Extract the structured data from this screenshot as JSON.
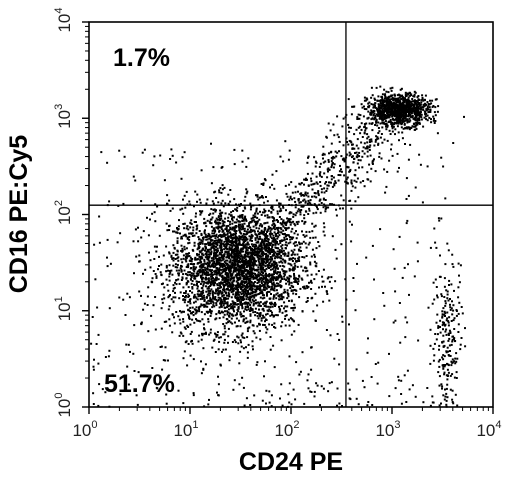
{
  "chart_data": {
    "type": "scatter",
    "xlabel": "CD24 PE",
    "ylabel": "CD16 PE:Cy5",
    "x_scale": "log",
    "y_scale": "log",
    "xlim": [
      1,
      10000
    ],
    "ylim": [
      1,
      10000
    ],
    "x_ticks": [
      {
        "base": "10",
        "exp": "0"
      },
      {
        "base": "10",
        "exp": "1"
      },
      {
        "base": "10",
        "exp": "2"
      },
      {
        "base": "10",
        "exp": "3"
      },
      {
        "base": "10",
        "exp": "4"
      }
    ],
    "y_ticks": [
      {
        "base": "10",
        "exp": "0"
      },
      {
        "base": "10",
        "exp": "1"
      },
      {
        "base": "10",
        "exp": "2"
      },
      {
        "base": "10",
        "exp": "3"
      },
      {
        "base": "10",
        "exp": "4"
      }
    ],
    "gates": {
      "x": 350,
      "y": 125
    },
    "quadrant_labels": {
      "upper_left": "1.7%",
      "lower_left": "51.7%"
    },
    "populations": [
      {
        "center_x": 28,
        "center_y": 28,
        "spread_x_decades": 0.33,
        "spread_y_decades": 0.32,
        "count": 3200
      },
      {
        "center_x": 1150,
        "center_y": 1250,
        "spread_x_decades": 0.15,
        "spread_y_decades": 0.08,
        "count": 1000
      },
      {
        "center_x": 3500,
        "center_y": 5,
        "spread_x_decades": 0.08,
        "spread_y_decades": 0.45,
        "count": 220
      }
    ],
    "point_color": "#000000",
    "grid": false
  }
}
